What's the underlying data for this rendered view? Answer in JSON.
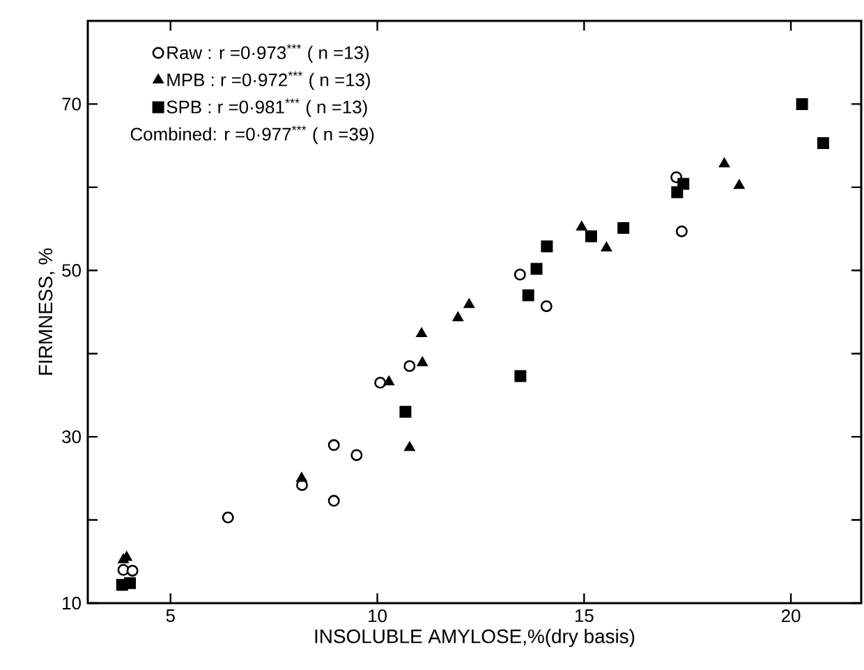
{
  "chart_data": {
    "type": "scatter",
    "xlabel": "INSOLUBLE AMYLOSE,%(dry basis)",
    "ylabel": "FIRMNESS, %",
    "xlim": [
      3,
      21.7
    ],
    "ylim": [
      10,
      80
    ],
    "xticks": [
      5,
      10,
      15,
      20
    ],
    "yticks": [
      10,
      {
        "value": 20,
        "label": null
      },
      30,
      {
        "value": 40,
        "label": null
      },
      50,
      {
        "value": 60,
        "label": null
      },
      70
    ],
    "legend": "top left",
    "grid": false,
    "annotations": [
      "Combined: r =0·977$^{***}$ ( n =39)"
    ],
    "series": [
      {
        "name": "Raw : r =0·973$^{***}$ ( n =13)",
        "color": "#000000",
        "marker": "circle",
        "x": [
          6.39,
          8.18,
          8.95,
          9.5,
          8.95,
          10.07,
          10.78,
          13.45,
          14.09,
          17.36,
          17.23,
          3.86,
          4.08
        ],
        "values": [
          20.3,
          24.2,
          29,
          27.8,
          22.3,
          36.5,
          38.5,
          49.5,
          45.7,
          54.7,
          61.2,
          14,
          13.9
        ]
      },
      {
        "name": "MPB : r =0·972$^{***}$ ( n =13)",
        "color": "#000000",
        "marker": "triangle",
        "x": [
          3.94,
          3.86,
          8.17,
          10.28,
          10.78,
          11.07,
          11.09,
          11.95,
          12.22,
          14.94,
          15.54,
          18.39,
          18.75
        ],
        "values": [
          15.5,
          15.2,
          25,
          36.6,
          28.7,
          42.4,
          38.9,
          44.3,
          45.9,
          55.2,
          52.7,
          62.8,
          60.2
        ]
      },
      {
        "name": "SPB : r =0·981$^{***}$ ( n =13)",
        "color": "#000000",
        "marker": "square",
        "x": [
          3.83,
          4.02,
          10.68,
          13.65,
          13.85,
          14.1,
          15.17,
          15.95,
          17.25,
          17.4,
          20.27,
          20.78,
          13.46
        ],
        "values": [
          12.2,
          12.4,
          33,
          47,
          50.2,
          52.9,
          54.1,
          55.1,
          59.4,
          60.4,
          70,
          65.3,
          37.3
        ]
      }
    ]
  }
}
